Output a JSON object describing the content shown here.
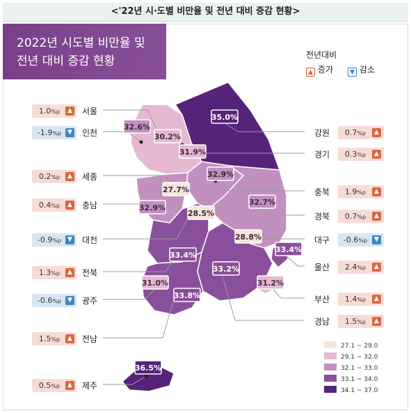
{
  "page_title": "<'22년 시·도별 비만율 및 전년 대비 증감 현황>",
  "banner": {
    "line1": "2022년 시도별 비만율 및",
    "line2": "전년 대비 증감 현황"
  },
  "legend": {
    "title": "전년대비",
    "increase_label": "증가",
    "decrease_label": "감소",
    "increase_icon": "chevron-up-icon",
    "decrease_icon": "chevron-down-icon",
    "increase_color": "#d9673f",
    "decrease_color": "#3f87bf"
  },
  "regions": [
    {
      "name": "서울",
      "change": "1.0",
      "unit": "%p",
      "direction": "up",
      "rate": "30.2",
      "rate_unit": "%"
    },
    {
      "name": "인천",
      "change": "-1.9",
      "unit": "%p",
      "direction": "down",
      "rate": "32.6",
      "rate_unit": "%"
    },
    {
      "name": "세종",
      "change": "0.2",
      "unit": "%p",
      "direction": "up",
      "rate": "27.7",
      "rate_unit": "%"
    },
    {
      "name": "충남",
      "change": "0.4",
      "unit": "%p",
      "direction": "up",
      "rate": "32.9",
      "rate_unit": "%"
    },
    {
      "name": "대전",
      "change": "-0.9",
      "unit": "%p",
      "direction": "down",
      "rate": "28.5",
      "rate_unit": "%"
    },
    {
      "name": "전북",
      "change": "1.3",
      "unit": "%p",
      "direction": "up",
      "rate": "33.4",
      "rate_unit": "%"
    },
    {
      "name": "광주",
      "change": "-0.6",
      "unit": "%p",
      "direction": "down",
      "rate": "31.0",
      "rate_unit": "%"
    },
    {
      "name": "전남",
      "change": "1.5",
      "unit": "%p",
      "direction": "up",
      "rate": "33.8",
      "rate_unit": "%"
    },
    {
      "name": "제주",
      "change": "0.5",
      "unit": "%p",
      "direction": "up",
      "rate": "36.5",
      "rate_unit": "%"
    },
    {
      "name": "강원",
      "change": "0.7",
      "unit": "%p",
      "direction": "up",
      "rate": "35.0",
      "rate_unit": "%"
    },
    {
      "name": "경기",
      "change": "0.3",
      "unit": "%p",
      "direction": "up",
      "rate": "31.9",
      "rate_unit": "%"
    },
    {
      "name": "충북",
      "change": "1.9",
      "unit": "%p",
      "direction": "up",
      "rate": "32.9",
      "rate_unit": "%"
    },
    {
      "name": "경북",
      "change": "0.7",
      "unit": "%p",
      "direction": "up",
      "rate": "32.7",
      "rate_unit": "%"
    },
    {
      "name": "대구",
      "change": "-0.6",
      "unit": "%p",
      "direction": "down",
      "rate": "28.8",
      "rate_unit": "%"
    },
    {
      "name": "울산",
      "change": "2.4",
      "unit": "%p",
      "direction": "up",
      "rate": "33.4",
      "rate_unit": "%"
    },
    {
      "name": "부산",
      "change": "1.4",
      "unit": "%p",
      "direction": "up",
      "rate": "31.2",
      "rate_unit": "%"
    },
    {
      "name": "경남",
      "change": "1.5",
      "unit": "%p",
      "direction": "up",
      "rate": "33.2",
      "rate_unit": "%"
    }
  ],
  "color_scale": [
    {
      "label": "27.1 ~ 29.0",
      "color": "#f5e6d8"
    },
    {
      "label": "29.1 ~ 32.0",
      "color": "#e6b8d2"
    },
    {
      "label": "32.1 ~ 33.0",
      "color": "#c290bf"
    },
    {
      "label": "33.1 ~ 34.0",
      "color": "#8a4f9a"
    },
    {
      "label": "34.1 ~ 37.0",
      "color": "#55237a"
    }
  ]
}
